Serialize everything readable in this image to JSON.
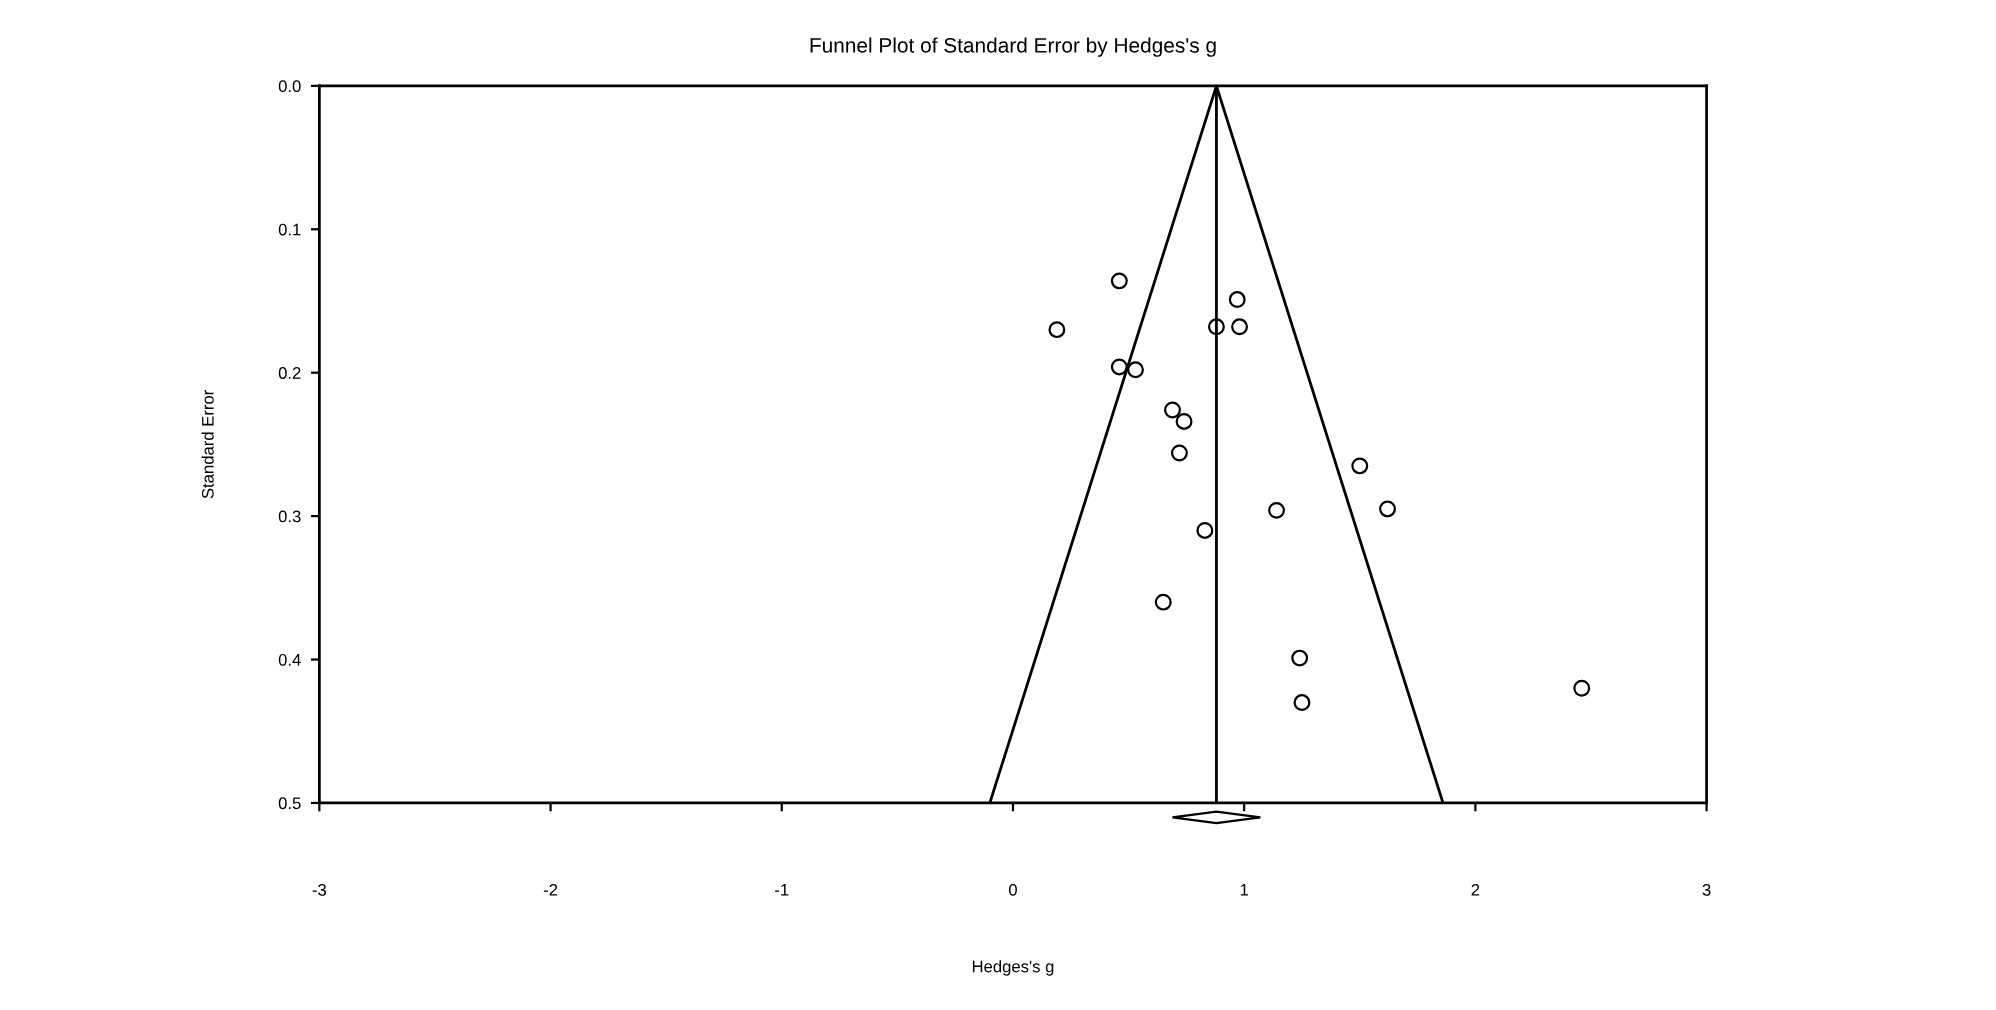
{
  "chart_data": {
    "type": "scatter",
    "title": "Funnel Plot of Standard Error by Hedges's g",
    "xlabel": "Hedges's g",
    "ylabel": "Standard Error",
    "xlim": [
      -3,
      3
    ],
    "xticks": [
      -3,
      -2,
      -1,
      0,
      1,
      2,
      3
    ],
    "ylim": [
      0.5,
      0.0
    ],
    "yticks": [
      {
        "value": 0.0,
        "label": "0.0"
      },
      0.1,
      0.2,
      0.3,
      0.4,
      0.5
    ],
    "grid": false,
    "marker": "circle",
    "series": [
      {
        "color": "#000000",
        "x": [
          0.46,
          0.19,
          0.97,
          0.88,
          0.98,
          0.46,
          0.53,
          0.69,
          0.74,
          0.72,
          1.5,
          1.62,
          1.14,
          0.83,
          0.65,
          1.24,
          1.25,
          2.46
        ],
        "values": [
          0.136,
          0.17,
          0.149,
          0.168,
          0.168,
          0.196,
          0.198,
          0.226,
          0.234,
          0.256,
          0.265,
          0.295,
          0.296,
          0.31,
          0.36,
          0.399,
          0.43,
          0.42
        ]
      },
      {
        "type": "line",
        "color": "#000000",
        "marker": "none",
        "x": [
          -0.1,
          0.88,
          1.86
        ],
        "values": [
          0.5,
          0.0,
          0.5
        ]
      }
    ],
    "ref_lines": [
      {
        "axis": "x",
        "value": 0.88,
        "color": "#000000"
      }
    ]
  }
}
